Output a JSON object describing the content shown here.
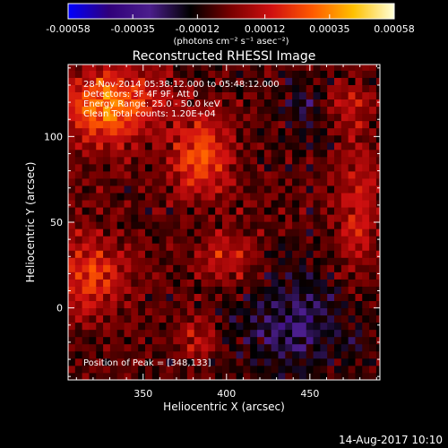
{
  "chart_data": {
    "type": "heatmap",
    "title": "Reconstructed RHESSI Image",
    "xlabel": "Heliocentric X (arcsec)",
    "ylabel": "Heliocentric Y (arcsec)",
    "xlim": [
      305,
      492
    ],
    "ylim": [
      -42,
      142
    ],
    "x_ticks": [
      350,
      400,
      450
    ],
    "y_ticks": [
      0,
      50,
      100
    ],
    "colorbar": {
      "min": -0.00058,
      "max": 0.00058,
      "tick_labels": [
        "-0.00058",
        "-0.00035",
        "-0.00012",
        "0.00012",
        "0.00035",
        "0.00058"
      ],
      "tick_values": [
        -0.00058,
        -0.00035,
        -0.00012,
        0.00012,
        0.00035,
        0.00058
      ],
      "units_label": "(photons cm⁻² s⁻¹ asec⁻²)",
      "colormap": [
        "#0000ff",
        "#30007a",
        "#4b1e8c",
        "#000000",
        "#7a0000",
        "#d01010",
        "#ff5a00",
        "#ffc000",
        "#ffffd8"
      ]
    },
    "annotations": [
      "28-Nov-2014 05:38:12.000 to 05:48:12.000",
      "Detectors: 3F 4F 9F, Att 0",
      "Energy Range: 25.0 - 50.0 keV",
      "Clean   Total counts: 1.20E+04"
    ],
    "peak_label": "Position of Peak = [348,133]",
    "peak": {
      "x": 348,
      "y": 133
    },
    "grid": false
  },
  "footer": {
    "timestamp": "14-Aug-2017 10:10"
  }
}
